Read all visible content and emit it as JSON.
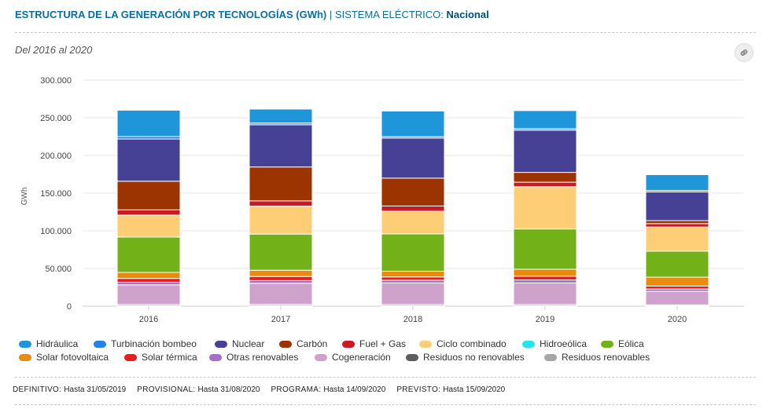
{
  "header": {
    "title": "ESTRUCTURA DE LA GENERACIÓN POR TECNOLOGÍAS (GWh)",
    "separator": "|",
    "system_label": "SISTEMA ELÉCTRICO:",
    "system_value": "Nacional"
  },
  "period": "Del 2016 al 2020",
  "link_icon": "link-icon",
  "footer": [
    {
      "label": "DEFINITIVO:",
      "value": "Hasta 31/05/2019"
    },
    {
      "label": "PROVISIONAL:",
      "value": "Hasta 31/08/2020"
    },
    {
      "label": "PROGRAMA:",
      "value": "Hasta 14/09/2020"
    },
    {
      "label": "PREVISTO:",
      "value": "Hasta 15/09/2020"
    }
  ],
  "chart_data": {
    "type": "bar",
    "stacked": true,
    "ylabel": "GWh",
    "ylim": [
      0,
      300000
    ],
    "yticks": [
      "0",
      "50.000",
      "100.000",
      "150.000",
      "200.000",
      "250.000",
      "300.000"
    ],
    "categories": [
      "2016",
      "2017",
      "2018",
      "2019",
      "2020"
    ],
    "grid": true,
    "legend_position": "bottom",
    "series": [
      {
        "name": "Residuos renovables",
        "color": "#a6a6a6",
        "values": [
          800,
          900,
          800,
          800,
          600
        ]
      },
      {
        "name": "Residuos no renovables",
        "color": "#5e5e5e",
        "values": [
          1500,
          1500,
          1500,
          1500,
          1100
        ]
      },
      {
        "name": "Cogeneración",
        "color": "#cfa2cc",
        "values": [
          26000,
          28000,
          28500,
          28500,
          18000
        ]
      },
      {
        "name": "Otras renovables",
        "color": "#a56fcb",
        "values": [
          3500,
          3600,
          3600,
          4000,
          3100
        ]
      },
      {
        "name": "Solar térmica",
        "color": "#ec1c1c",
        "values": [
          5000,
          5400,
          4400,
          5000,
          3900
        ]
      },
      {
        "name": "Solar fotovoltaica",
        "color": "#e88b0f",
        "values": [
          8000,
          8300,
          7600,
          9200,
          11800
        ]
      },
      {
        "name": "Eólica",
        "color": "#73b119",
        "values": [
          47000,
          48000,
          49500,
          53500,
          34500
        ]
      },
      {
        "name": "Hidroeólica",
        "color": "#25e4ec",
        "values": [
          20,
          20,
          20,
          20,
          10
        ]
      },
      {
        "name": "Ciclo combinado",
        "color": "#fdce76",
        "values": [
          29000,
          37000,
          30000,
          56000,
          32000
        ]
      },
      {
        "name": "Fuel + Gas",
        "color": "#c91922",
        "values": [
          7000,
          7000,
          7000,
          6000,
          4500
        ]
      },
      {
        "name": "Carbón",
        "color": "#9b3400",
        "values": [
          38000,
          45000,
          37000,
          13000,
          4000
        ]
      },
      {
        "name": "Nuclear",
        "color": "#474196",
        "values": [
          56000,
          56000,
          53000,
          56000,
          38000
        ]
      },
      {
        "name": "Turbinación bombeo",
        "color": "#2382e8",
        "values": [
          3200,
          2300,
          2000,
          2000,
          2000
        ]
      },
      {
        "name": "Hidráulica",
        "color": "#1e96d9",
        "values": [
          35000,
          18500,
          34000,
          24000,
          21000
        ]
      }
    ]
  },
  "legend_order": [
    "Hidráulica",
    "Turbinación bombeo",
    "Nuclear",
    "Carbón",
    "Fuel + Gas",
    "Ciclo combinado",
    "Hidroeólica",
    "Eólica",
    "Solar fotovoltaica",
    "Solar térmica",
    "Otras renovables",
    "Cogeneración",
    "Residuos no renovables",
    "Residuos renovables"
  ]
}
